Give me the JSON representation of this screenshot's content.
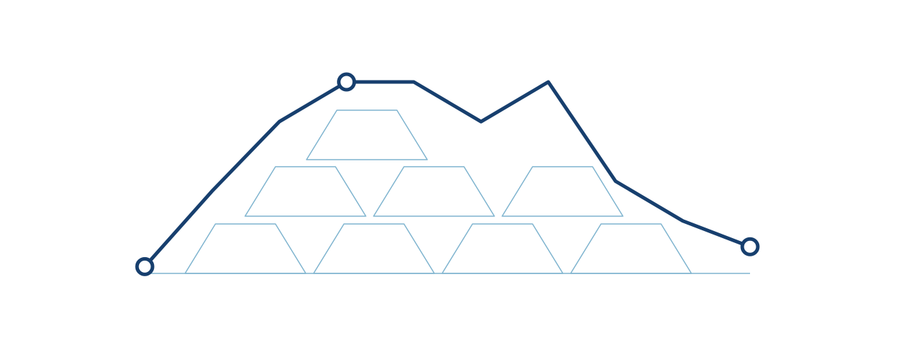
{
  "illustration": {
    "subject": "gold-bars-price-trend",
    "colors": {
      "line": "#173f6e",
      "bars": "#7fb4cf",
      "background": "#ffffff"
    },
    "gold_bars": {
      "rows": [
        {
          "row": "bottom",
          "count": 4
        },
        {
          "row": "middle",
          "count": 3
        },
        {
          "row": "top",
          "count": 1
        }
      ]
    },
    "trend": {
      "levels": [
        0.07,
        0.45,
        0.8,
        1.0,
        1.0,
        0.8,
        1.0,
        0.5,
        0.3,
        0.17
      ],
      "markers": [
        0,
        3,
        9
      ]
    }
  }
}
